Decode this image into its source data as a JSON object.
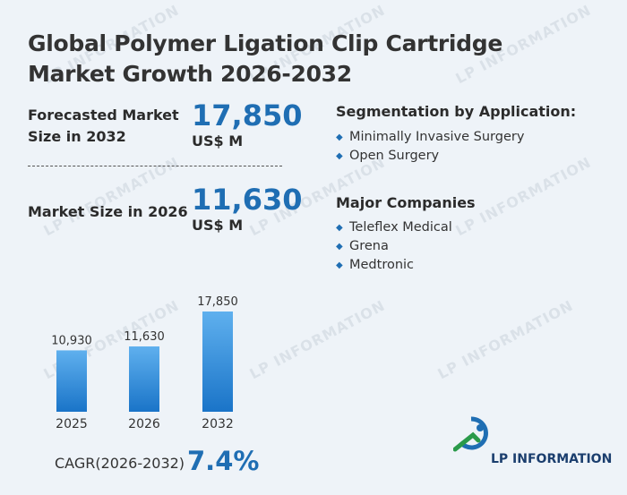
{
  "title": "Global Polymer Ligation Clip Cartridge Market Growth 2026-2032",
  "kpis": [
    {
      "label": "Forecasted Market Size in 2032",
      "value": "17,850",
      "unit": "US$ M"
    },
    {
      "label": "Market Size in 2026",
      "value": "11,630",
      "unit": "US$ M"
    }
  ],
  "segmentation": {
    "title": "Segmentation by Application:",
    "items": [
      "Minimally Invasive Surgery",
      "Open Surgery"
    ]
  },
  "companies": {
    "title": "Major Companies",
    "items": [
      "Teleflex Medical",
      "Grena",
      "Medtronic"
    ]
  },
  "cagr": {
    "label": "CAGR(2026-2032)",
    "value": "7.4%"
  },
  "logo": {
    "text": "LP INFORMATION"
  },
  "watermark_text": "LP INFORMATION",
  "colors": {
    "accent": "#1f6eb3",
    "bar_top": "#5fb0ee",
    "bar_bottom": "#1a74c8"
  },
  "chart_data": {
    "type": "bar",
    "categories": [
      "2025",
      "2026",
      "2032"
    ],
    "values": [
      10930,
      11630,
      17850
    ],
    "value_labels": [
      "10,930",
      "11,630",
      "17,850"
    ],
    "title": "",
    "xlabel": "",
    "ylabel": ""
  }
}
